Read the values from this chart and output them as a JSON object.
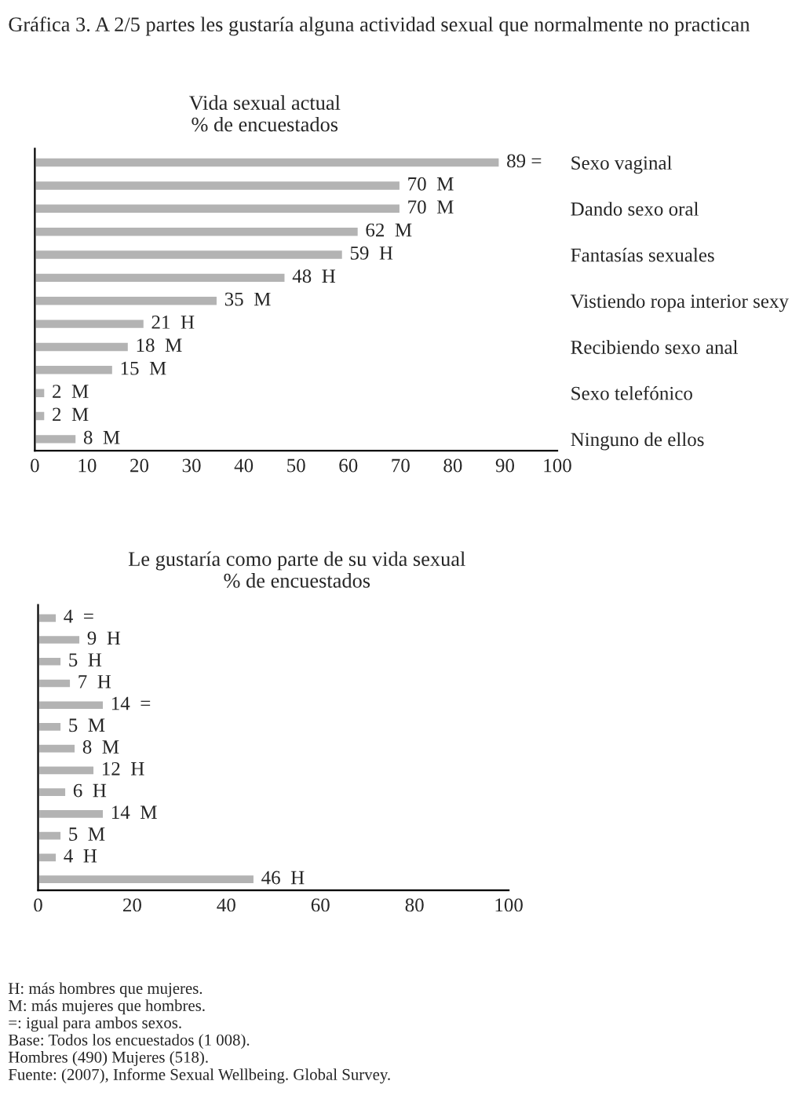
{
  "chart_data": [
    {
      "type": "bar",
      "orientation": "horizontal",
      "title": "Vida sexual actual",
      "subtitle": "% de encuestados",
      "categories": [
        "Sexo vaginal",
        null,
        "Dando sexo oral",
        null,
        "Fantasías sexuales",
        null,
        "Vistiendo ropa interior sexy",
        null,
        "Recibiendo sexo anal",
        null,
        "Sexo telefónico",
        null,
        "Ninguno de ellos"
      ],
      "values": [
        89,
        70,
        70,
        62,
        59,
        48,
        35,
        21,
        18,
        15,
        2,
        2,
        8
      ],
      "value_labels": [
        "89 =",
        "70  M",
        "70  M",
        "62  M",
        "59  H",
        "48  H",
        "35  M",
        "21  H",
        "18  M",
        "15  M",
        "2  M",
        "2  M",
        "8  M"
      ],
      "color": "#b3b3b3",
      "xlim": [
        0,
        100
      ],
      "xticks": [
        0,
        10,
        20,
        30,
        40,
        50,
        60,
        70,
        80,
        90,
        100
      ],
      "grid": false,
      "annotations": [
        "Gráfica 3. A 2/5 partes les gustaría alguna actividad sexual que normalmente no practican"
      ]
    },
    {
      "type": "bar",
      "orientation": "horizontal",
      "title": "Le gustaría como parte de su vida sexual",
      "subtitle": "% de encuestados",
      "categories": [
        null,
        null,
        null,
        null,
        null,
        null,
        null,
        null,
        null,
        null,
        null,
        null,
        null
      ],
      "values": [
        4,
        9,
        5,
        7,
        14,
        5,
        8,
        12,
        6,
        14,
        5,
        4,
        46
      ],
      "value_labels": [
        "4  =",
        "9  H",
        "5  H",
        "7  H",
        "14  =",
        "5  M",
        "8  M",
        "12  H",
        "6  H",
        "14  M",
        "5  M",
        "4  H",
        "46  H"
      ],
      "color": "#b3b3b3",
      "xlim": [
        0,
        100
      ],
      "xticks": [
        0,
        20,
        40,
        60,
        80,
        100
      ],
      "grid": false,
      "annotations": [
        "H: más hombres que mujeres.",
        "M: más mujeres que hombres.",
        "=: igual para ambos sexos.",
        "Base: Todos los encuestados (1 008).",
        "Hombres (490) Mujeres (518).",
        "Fuente: (2007), Informe Sexual Wellbeing. Global Survey."
      ]
    }
  ]
}
